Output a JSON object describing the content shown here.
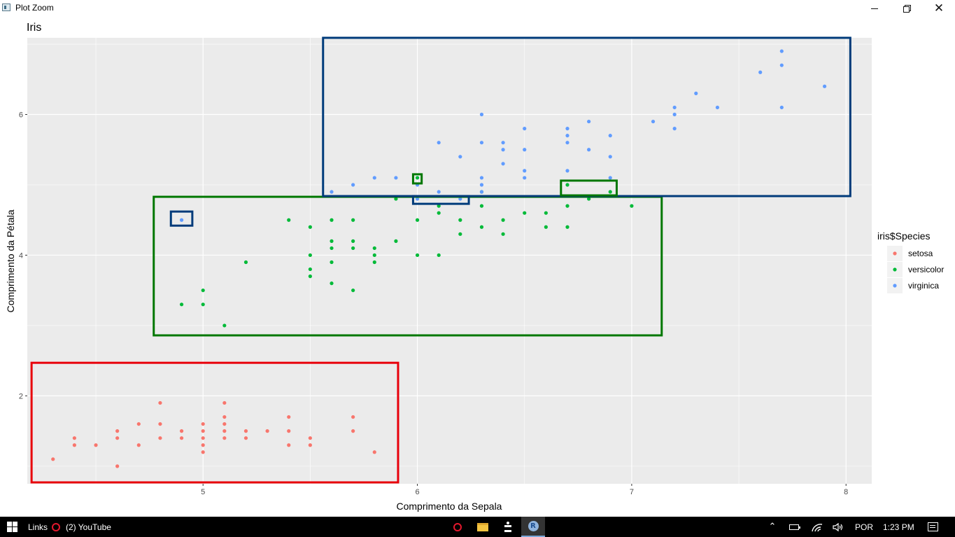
{
  "window": {
    "title": "Plot Zoom"
  },
  "icons": {
    "app": "plot-window-icon",
    "minimize": "minimize-icon",
    "maximize": "maximize-icon",
    "close": "close-icon"
  },
  "chart_data": {
    "type": "scatter",
    "title": "Iris",
    "xlabel": "Comprimento da Sepala",
    "ylabel": "Comprimento da Pétala",
    "xlim": [
      4.18,
      8.12
    ],
    "ylim": [
      0.75,
      7.09
    ],
    "xticks": [
      5,
      6,
      7,
      8
    ],
    "yticks": [
      2,
      4,
      6
    ],
    "grid": true,
    "panel_background": "#EBEBEB",
    "legend": {
      "title": "iris$Species",
      "placement": "right",
      "entries": [
        "setosa",
        "versicolor",
        "virginica"
      ]
    },
    "series": [
      {
        "name": "setosa",
        "color": "#F8766D",
        "points": [
          [
            4.3,
            1.1
          ],
          [
            4.4,
            1.4
          ],
          [
            4.4,
            1.3
          ],
          [
            4.5,
            1.3
          ],
          [
            4.6,
            1.5
          ],
          [
            4.6,
            1.4
          ],
          [
            4.6,
            1.0
          ],
          [
            4.7,
            1.6
          ],
          [
            4.7,
            1.3
          ],
          [
            4.8,
            1.9
          ],
          [
            4.8,
            1.6
          ],
          [
            4.8,
            1.4
          ],
          [
            4.9,
            1.5
          ],
          [
            4.9,
            1.4
          ],
          [
            5.0,
            1.6
          ],
          [
            5.0,
            1.5
          ],
          [
            5.0,
            1.4
          ],
          [
            5.0,
            1.3
          ],
          [
            5.0,
            1.2
          ],
          [
            5.1,
            1.9
          ],
          [
            5.1,
            1.7
          ],
          [
            5.1,
            1.6
          ],
          [
            5.1,
            1.5
          ],
          [
            5.1,
            1.4
          ],
          [
            5.2,
            1.5
          ],
          [
            5.2,
            1.4
          ],
          [
            5.3,
            1.5
          ],
          [
            5.4,
            1.7
          ],
          [
            5.4,
            1.5
          ],
          [
            5.4,
            1.3
          ],
          [
            5.5,
            1.4
          ],
          [
            5.5,
            1.3
          ],
          [
            5.7,
            1.7
          ],
          [
            5.7,
            1.5
          ],
          [
            5.8,
            1.2
          ]
        ]
      },
      {
        "name": "versicolor",
        "color": "#00BA38",
        "points": [
          [
            4.9,
            3.3
          ],
          [
            5.0,
            3.5
          ],
          [
            5.0,
            3.3
          ],
          [
            5.1,
            3.0
          ],
          [
            5.2,
            3.9
          ],
          [
            5.4,
            4.5
          ],
          [
            5.5,
            4.4
          ],
          [
            5.5,
            4.0
          ],
          [
            5.5,
            3.8
          ],
          [
            5.5,
            3.7
          ],
          [
            5.6,
            4.5
          ],
          [
            5.6,
            4.2
          ],
          [
            5.6,
            4.1
          ],
          [
            5.6,
            3.9
          ],
          [
            5.6,
            3.6
          ],
          [
            5.7,
            4.5
          ],
          [
            5.7,
            4.2
          ],
          [
            5.7,
            4.1
          ],
          [
            5.7,
            3.5
          ],
          [
            5.8,
            4.1
          ],
          [
            5.8,
            4.0
          ],
          [
            5.8,
            3.9
          ],
          [
            5.9,
            4.8
          ],
          [
            5.9,
            4.2
          ],
          [
            6.0,
            5.1
          ],
          [
            6.0,
            4.5
          ],
          [
            6.0,
            4.0
          ],
          [
            6.1,
            4.7
          ],
          [
            6.1,
            4.6
          ],
          [
            6.1,
            4.0
          ],
          [
            6.2,
            4.5
          ],
          [
            6.2,
            4.3
          ],
          [
            6.3,
            4.9
          ],
          [
            6.3,
            4.7
          ],
          [
            6.3,
            4.4
          ],
          [
            6.4,
            4.5
          ],
          [
            6.4,
            4.3
          ],
          [
            6.5,
            4.6
          ],
          [
            6.6,
            4.6
          ],
          [
            6.6,
            4.4
          ],
          [
            6.7,
            5.0
          ],
          [
            6.7,
            4.7
          ],
          [
            6.7,
            4.4
          ],
          [
            6.8,
            4.8
          ],
          [
            6.9,
            4.9
          ],
          [
            7.0,
            4.7
          ]
        ]
      },
      {
        "name": "virginica",
        "color": "#619CFF",
        "points": [
          [
            4.9,
            4.5
          ],
          [
            5.6,
            4.9
          ],
          [
            5.7,
            5.0
          ],
          [
            5.8,
            5.1
          ],
          [
            5.9,
            5.1
          ],
          [
            6.0,
            5.0
          ],
          [
            6.0,
            4.8
          ],
          [
            6.1,
            5.6
          ],
          [
            6.1,
            4.9
          ],
          [
            6.2,
            5.4
          ],
          [
            6.2,
            4.8
          ],
          [
            6.3,
            6.0
          ],
          [
            6.3,
            5.6
          ],
          [
            6.3,
            5.1
          ],
          [
            6.3,
            5.0
          ],
          [
            6.3,
            4.9
          ],
          [
            6.4,
            5.6
          ],
          [
            6.4,
            5.5
          ],
          [
            6.4,
            5.3
          ],
          [
            6.5,
            5.8
          ],
          [
            6.5,
            5.5
          ],
          [
            6.5,
            5.2
          ],
          [
            6.5,
            5.1
          ],
          [
            6.7,
            5.8
          ],
          [
            6.7,
            5.7
          ],
          [
            6.7,
            5.6
          ],
          [
            6.7,
            5.2
          ],
          [
            6.8,
            5.9
          ],
          [
            6.8,
            5.5
          ],
          [
            6.9,
            5.7
          ],
          [
            6.9,
            5.4
          ],
          [
            6.9,
            5.1
          ],
          [
            7.1,
            5.9
          ],
          [
            7.2,
            6.1
          ],
          [
            7.2,
            6.0
          ],
          [
            7.2,
            5.8
          ],
          [
            7.3,
            6.3
          ],
          [
            7.4,
            6.1
          ],
          [
            7.6,
            6.6
          ],
          [
            7.7,
            6.9
          ],
          [
            7.7,
            6.7
          ],
          [
            7.7,
            6.1
          ],
          [
            7.9,
            6.4
          ]
        ]
      }
    ],
    "annotations": [
      {
        "type": "rect",
        "color": "#E8000B",
        "x": [
          4.2,
          5.91
        ],
        "y": [
          0.77,
          2.47
        ]
      },
      {
        "type": "rect",
        "color": "#007700",
        "x": [
          4.77,
          7.14
        ],
        "y": [
          2.86,
          4.83
        ]
      },
      {
        "type": "rect",
        "color": "#003B7A",
        "x": [
          5.56,
          8.02
        ],
        "y": [
          4.84,
          7.09
        ]
      },
      {
        "type": "rect",
        "color": "#003B7A",
        "x": [
          4.85,
          4.95
        ],
        "y": [
          4.42,
          4.62
        ]
      },
      {
        "type": "rect",
        "color": "#007700",
        "x": [
          5.98,
          6.02
        ],
        "y": [
          5.02,
          5.15
        ]
      },
      {
        "type": "rect",
        "color": "#003B7A",
        "x": [
          5.98,
          6.24
        ],
        "y": [
          4.73,
          4.84
        ]
      },
      {
        "type": "rect",
        "color": "#007700",
        "x": [
          6.67,
          6.93
        ],
        "y": [
          4.85,
          5.06
        ]
      }
    ]
  },
  "taskbar": {
    "links_label": "Links",
    "active_app": "(2) YouTube",
    "language": "POR",
    "time": "1:23 PM",
    "icons": [
      "windows-start-icon",
      "opera-icon",
      "file-explorer-icon",
      "rstudio-icon",
      "r-icon",
      "chevron-up-icon",
      "battery-icon",
      "wifi-icon",
      "volume-icon",
      "notifications-icon"
    ],
    "r_icon_text": "R"
  }
}
